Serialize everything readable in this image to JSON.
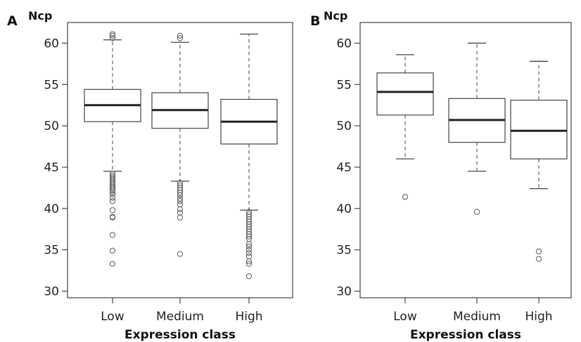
{
  "chart_data": [
    {
      "panel": "A",
      "type": "box",
      "ylabel": "Ncp",
      "xlabel": "Expression class",
      "categories": [
        "Low",
        "Medium",
        "High"
      ],
      "ylim": [
        29.2,
        62.5
      ],
      "yticks": [
        30,
        35,
        40,
        45,
        50,
        55,
        60
      ],
      "boxes": [
        {
          "category": "Low",
          "whisker_low": 44.5,
          "q1": 50.5,
          "median": 52.5,
          "q3": 54.4,
          "whisker_high": 60.4,
          "outliers": [
            61.1,
            60.9,
            60.6,
            44.2,
            44.0,
            43.8,
            43.6,
            43.4,
            43.2,
            43.0,
            42.8,
            42.6,
            42.4,
            42.2,
            42.0,
            41.7,
            41.3,
            40.9,
            39.8,
            39.0,
            38.9,
            36.8,
            34.9,
            33.3
          ]
        },
        {
          "category": "Medium",
          "whisker_low": 43.3,
          "q1": 49.7,
          "median": 51.9,
          "q3": 54.0,
          "whisker_high": 60.1,
          "outliers": [
            60.9,
            60.6,
            43.1,
            42.8,
            42.5,
            42.2,
            41.9,
            41.6,
            41.2,
            40.9,
            40.5,
            39.9,
            39.5,
            38.9,
            34.5
          ]
        },
        {
          "category": "High",
          "whisker_low": 39.8,
          "q1": 47.8,
          "median": 50.5,
          "q3": 53.2,
          "whisker_high": 61.1,
          "outliers": [
            39.6,
            39.3,
            39.0,
            38.7,
            38.4,
            38.1,
            37.8,
            37.5,
            37.2,
            36.9,
            36.6,
            36.3,
            35.7,
            35.4,
            35.0,
            34.6,
            34.2,
            33.6,
            33.3,
            31.8
          ]
        }
      ]
    },
    {
      "panel": "B",
      "type": "box",
      "ylabel": "Ncp",
      "xlabel": "Expression class",
      "categories": [
        "Low",
        "Medium",
        "High"
      ],
      "ylim": [
        29.2,
        62.5
      ],
      "yticks": [
        30,
        35,
        40,
        45,
        50,
        55,
        60
      ],
      "boxes": [
        {
          "category": "Low",
          "whisker_low": 46.0,
          "q1": 51.3,
          "median": 54.1,
          "q3": 56.4,
          "whisker_high": 58.6,
          "outliers": [
            41.4
          ]
        },
        {
          "category": "Medium",
          "whisker_low": 44.5,
          "q1": 48.0,
          "median": 50.7,
          "q3": 53.3,
          "whisker_high": 60.0,
          "outliers": [
            39.6
          ]
        },
        {
          "category": "High",
          "whisker_low": 42.4,
          "q1": 46.0,
          "median": 49.4,
          "q3": 53.1,
          "whisker_high": 57.8,
          "outliers": [
            34.8,
            33.9
          ]
        }
      ]
    }
  ]
}
